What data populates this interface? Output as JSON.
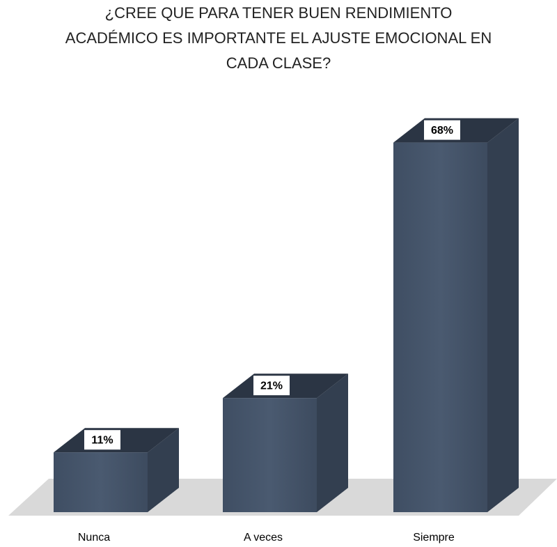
{
  "chart_data": {
    "type": "bar3d",
    "title": [
      "¿CREE QUE PARA TENER BUEN RENDIMIENTO",
      "ACADÉMICO ES IMPORTANTE EL AJUSTE EMOCIONAL EN",
      "CADA CLASE?"
    ],
    "categories": [
      "Nunca",
      "A veces",
      "Siempre"
    ],
    "values": [
      11,
      21,
      68
    ],
    "value_labels": [
      "11%",
      "21%",
      "68%"
    ],
    "color": "#44546a"
  }
}
